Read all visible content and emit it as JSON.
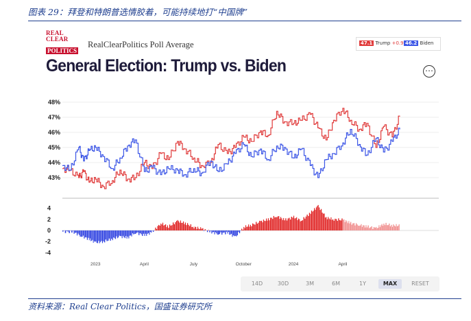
{
  "caption": "图表 29：拜登和特朗普选情胶着，可能持续地打“中国牌”",
  "source": "资料来源：Real Clear Politics，国盛证券研究所",
  "logo": {
    "line1": "REAL",
    "line2": "CLEAR",
    "line3": "POLITICS"
  },
  "poll_title": "RealClearPolitics Poll Average",
  "main_title": "General Election: Trump vs. Biden",
  "more_icon": "⋯",
  "legend": {
    "trump": {
      "value": "47.1",
      "name": "Trump",
      "change": "+0.9",
      "color": "#e03a3a"
    },
    "biden": {
      "value": "46.2",
      "name": "Biden",
      "color": "#3b55e6"
    }
  },
  "range_buttons": [
    {
      "label": "14D",
      "active": false
    },
    {
      "label": "30D",
      "active": false
    },
    {
      "label": "3M",
      "active": false
    },
    {
      "label": "6M",
      "active": false
    },
    {
      "label": "1Y",
      "active": false
    },
    {
      "label": "MAX",
      "active": true
    },
    {
      "label": "RESET",
      "active": false
    }
  ],
  "chart_data": [
    {
      "type": "line",
      "ylim": [
        42.2,
        48.2
      ],
      "y_ticks": [
        "48%",
        "47%",
        "46%",
        "45%",
        "44%",
        "43%"
      ],
      "y_tick_values": [
        48,
        47,
        46,
        45,
        44,
        43
      ],
      "grid": true,
      "series": [
        {
          "name": "Trump",
          "color": "#e03a3a",
          "points": [
            [
              "2022-11-01",
              43.6
            ],
            [
              "2022-11-15",
              43.5
            ],
            [
              "2022-12-01",
              43.0
            ],
            [
              "2022-12-10",
              43.4
            ],
            [
              "2022-12-20",
              42.7
            ],
            [
              "2023-01-01",
              42.9
            ],
            [
              "2023-01-15",
              42.4
            ],
            [
              "2023-02-01",
              42.8
            ],
            [
              "2023-02-15",
              43.5
            ],
            [
              "2023-03-01",
              42.9
            ],
            [
              "2023-03-15",
              43.0
            ],
            [
              "2023-04-01",
              44.0
            ],
            [
              "2023-04-15",
              43.6
            ],
            [
              "2023-05-01",
              44.6
            ],
            [
              "2023-05-15",
              44.2
            ],
            [
              "2023-06-01",
              45.4
            ],
            [
              "2023-06-15",
              44.9
            ],
            [
              "2023-07-01",
              44.3
            ],
            [
              "2023-07-15",
              43.8
            ],
            [
              "2023-08-01",
              44.0
            ],
            [
              "2023-08-15",
              45.2
            ],
            [
              "2023-09-01",
              44.6
            ],
            [
              "2023-09-15",
              45.0
            ],
            [
              "2023-10-01",
              45.7
            ],
            [
              "2023-10-15",
              45.4
            ],
            [
              "2023-11-01",
              46.1
            ],
            [
              "2023-11-15",
              45.8
            ],
            [
              "2023-12-01",
              47.4
            ],
            [
              "2023-12-15",
              46.7
            ],
            [
              "2024-01-01",
              46.6
            ],
            [
              "2024-01-15",
              46.8
            ],
            [
              "2024-02-01",
              47.2
            ],
            [
              "2024-02-15",
              46.3
            ],
            [
              "2024-03-01",
              45.5
            ],
            [
              "2024-03-15",
              46.8
            ],
            [
              "2024-04-01",
              47.6
            ],
            [
              "2024-04-15",
              46.8
            ],
            [
              "2024-05-01",
              46.2
            ],
            [
              "2024-05-15",
              46.6
            ],
            [
              "2024-06-01",
              45.0
            ],
            [
              "2024-06-15",
              46.4
            ],
            [
              "2024-07-01",
              45.7
            ],
            [
              "2024-07-15",
              47.1
            ]
          ]
        },
        {
          "name": "Biden",
          "color": "#3b55e6",
          "points": [
            [
              "2022-11-01",
              43.8
            ],
            [
              "2022-11-15",
              43.5
            ],
            [
              "2022-12-01",
              45.0
            ],
            [
              "2022-12-10",
              44.1
            ],
            [
              "2022-12-20",
              44.8
            ],
            [
              "2023-01-01",
              45.0
            ],
            [
              "2023-01-15",
              44.4
            ],
            [
              "2023-02-01",
              43.6
            ],
            [
              "2023-02-15",
              44.3
            ],
            [
              "2023-03-01",
              45.1
            ],
            [
              "2023-03-15",
              45.5
            ],
            [
              "2023-04-01",
              43.4
            ],
            [
              "2023-04-15",
              43.7
            ],
            [
              "2023-05-01",
              43.2
            ],
            [
              "2023-05-15",
              43.6
            ],
            [
              "2023-06-01",
              43.5
            ],
            [
              "2023-06-15",
              43.2
            ],
            [
              "2023-07-01",
              43.6
            ],
            [
              "2023-07-15",
              43.3
            ],
            [
              "2023-08-01",
              44.1
            ],
            [
              "2023-08-15",
              43.4
            ],
            [
              "2023-09-01",
              43.9
            ],
            [
              "2023-09-15",
              44.6
            ],
            [
              "2023-10-01",
              45.2
            ],
            [
              "2023-10-15",
              44.4
            ],
            [
              "2023-11-01",
              44.9
            ],
            [
              "2023-11-15",
              44.2
            ],
            [
              "2023-12-01",
              45.1
            ],
            [
              "2023-12-15",
              45.0
            ],
            [
              "2024-01-01",
              44.3
            ],
            [
              "2024-01-15",
              44.9
            ],
            [
              "2024-02-01",
              43.8
            ],
            [
              "2024-02-15",
              43.0
            ],
            [
              "2024-03-01",
              44.2
            ],
            [
              "2024-03-15",
              44.6
            ],
            [
              "2024-04-01",
              45.3
            ],
            [
              "2024-04-15",
              46.2
            ],
            [
              "2024-05-01",
              45.2
            ],
            [
              "2024-05-15",
              44.5
            ],
            [
              "2024-06-01",
              45.6
            ],
            [
              "2024-06-15",
              44.7
            ],
            [
              "2024-07-01",
              45.4
            ],
            [
              "2024-07-15",
              46.2
            ]
          ]
        }
      ]
    },
    {
      "type": "bar",
      "ylim": [
        -4.5,
        5
      ],
      "y_ticks": [
        "4",
        "2",
        "0",
        "-2",
        "-4"
      ],
      "y_tick_values": [
        4,
        2,
        0,
        -2,
        -4
      ],
      "x_tick_labels": [
        {
          "label": "2023",
          "date": "2023-01-01"
        },
        {
          "label": "April",
          "date": "2023-04-01"
        },
        {
          "label": "July",
          "date": "2023-07-01"
        },
        {
          "label": "October",
          "date": "2023-10-01"
        },
        {
          "label": "2024",
          "date": "2024-01-01"
        },
        {
          "label": "April",
          "date": "2024-04-01"
        }
      ],
      "colors": {
        "trump_lead": "#e02020",
        "biden_lead": "#2c3fe0",
        "projection": "#f08a8a"
      },
      "spread": [
        [
          "2022-11-01",
          -0.2
        ],
        [
          "2022-11-20",
          -0.3
        ],
        [
          "2022-12-05",
          -1.0
        ],
        [
          "2022-12-20",
          -1.6
        ],
        [
          "2023-01-01",
          -2.2
        ],
        [
          "2023-01-15",
          -2.0
        ],
        [
          "2023-02-01",
          -1.5
        ],
        [
          "2023-02-15",
          -1.1
        ],
        [
          "2023-03-01",
          -1.3
        ],
        [
          "2023-03-15",
          -0.4
        ],
        [
          "2023-04-01",
          -0.9
        ],
        [
          "2023-04-15",
          -0.3
        ],
        [
          "2023-05-01",
          1.3
        ],
        [
          "2023-05-15",
          0.7
        ],
        [
          "2023-06-01",
          1.7
        ],
        [
          "2023-06-15",
          1.3
        ],
        [
          "2023-07-01",
          0.6
        ],
        [
          "2023-07-15",
          0.3
        ],
        [
          "2023-08-01",
          -0.3
        ],
        [
          "2023-08-15",
          -0.6
        ],
        [
          "2023-09-01",
          -0.4
        ],
        [
          "2023-09-15",
          -1.2
        ],
        [
          "2023-10-01",
          0.6
        ],
        [
          "2023-10-15",
          1.0
        ],
        [
          "2023-11-01",
          1.6
        ],
        [
          "2023-11-15",
          2.0
        ],
        [
          "2023-12-01",
          2.6
        ],
        [
          "2023-12-15",
          1.9
        ],
        [
          "2024-01-01",
          2.4
        ],
        [
          "2024-01-15",
          1.8
        ],
        [
          "2024-02-01",
          3.2
        ],
        [
          "2024-02-15",
          4.4
        ],
        [
          "2024-03-01",
          2.3
        ],
        [
          "2024-03-15",
          2.0
        ],
        [
          "2024-04-01",
          1.9
        ],
        [
          "2024-04-15",
          1.3
        ],
        [
          "2024-05-01",
          1.0
        ],
        [
          "2024-05-15",
          0.7
        ],
        [
          "2024-06-01",
          0.4
        ],
        [
          "2024-06-15",
          1.2
        ],
        [
          "2024-07-01",
          0.9
        ],
        [
          "2024-07-15",
          0.9
        ]
      ],
      "projection_start": "2024-04-01"
    }
  ]
}
